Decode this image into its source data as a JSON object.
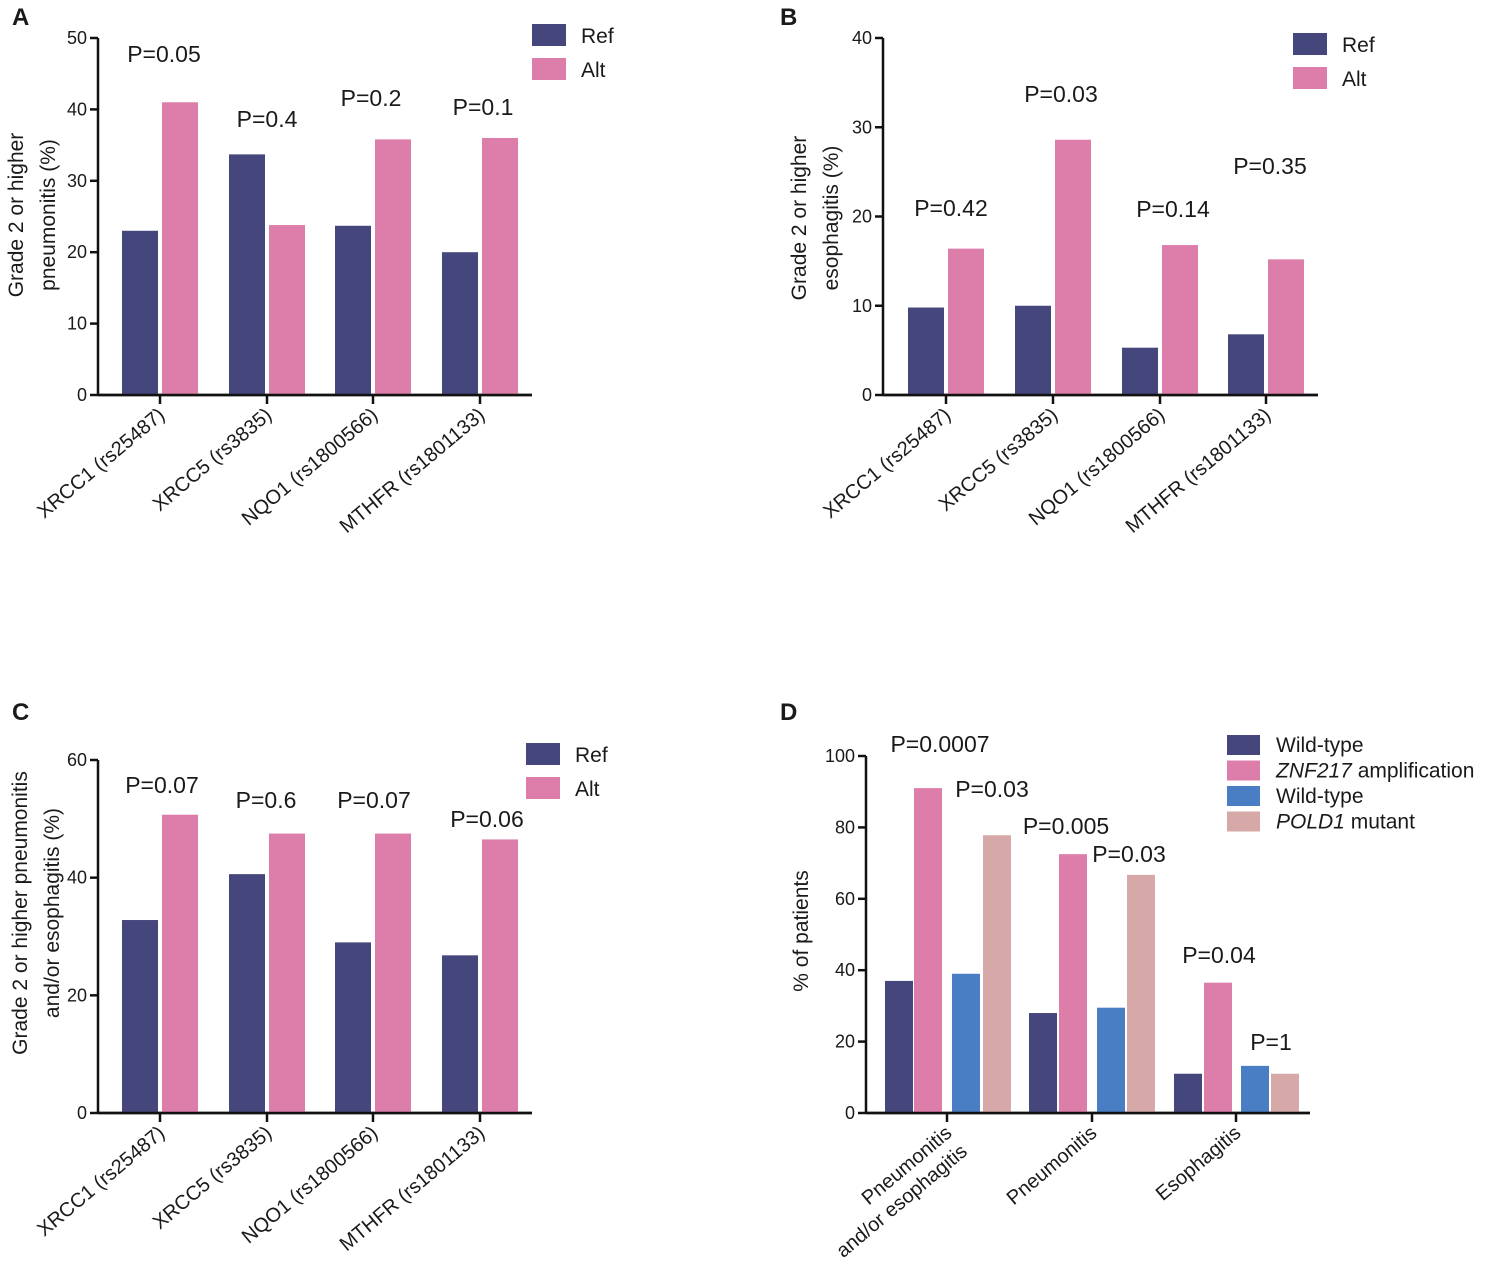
{
  "colors": {
    "ref": "#45467b",
    "alt": "#dc7daa",
    "wild_type_2": "#4a7ec4",
    "pold1_mutant": "#d6a8a8",
    "axis": "#111111"
  },
  "chart_data": [
    {
      "panel": "A",
      "type": "bar",
      "ylabel": [
        "Grade 2 or higher",
        "pneumonitis (%)"
      ],
      "ylim": [
        0,
        50
      ],
      "yticks": [
        0,
        10,
        20,
        30,
        40,
        50
      ],
      "categories": [
        "XRCC1 (rs25487)",
        "XRCC5 (rs3835)",
        "NQO1 (rs1800566)",
        "MTHFR (rs1801133)"
      ],
      "series": [
        {
          "name": "Ref",
          "color_key": "ref",
          "values": [
            23,
            33.7,
            23.7,
            20
          ]
        },
        {
          "name": "Alt",
          "color_key": "alt",
          "values": [
            41,
            23.8,
            35.8,
            36
          ]
        }
      ],
      "pvalues": [
        "P=0.05",
        "P=0.4",
        "P=0.2",
        "P=0.1"
      ],
      "legend": [
        {
          "label": "Ref",
          "color_key": "ref"
        },
        {
          "label": "Alt",
          "color_key": "alt"
        }
      ]
    },
    {
      "panel": "B",
      "type": "bar",
      "ylabel": [
        "Grade 2 or higher",
        "esophagitis (%)"
      ],
      "ylim": [
        0,
        40
      ],
      "yticks": [
        0,
        10,
        20,
        30,
        40
      ],
      "categories": [
        "XRCC1 (rs25487)",
        "XRCC5 (rs3835)",
        "NQO1 (rs1800566)",
        "MTHFR (rs1801133)"
      ],
      "series": [
        {
          "name": "Ref",
          "color_key": "ref",
          "values": [
            9.8,
            10,
            5.3,
            6.8
          ]
        },
        {
          "name": "Alt",
          "color_key": "alt",
          "values": [
            16.4,
            28.6,
            16.8,
            15.2
          ]
        }
      ],
      "pvalues": [
        "P=0.42",
        "P=0.03",
        "P=0.14",
        "P=0.35"
      ],
      "legend": [
        {
          "label": "Ref",
          "color_key": "ref"
        },
        {
          "label": "Alt",
          "color_key": "alt"
        }
      ]
    },
    {
      "panel": "C",
      "type": "bar",
      "ylabel": [
        "Grade 2 or higher pneumonitis",
        "and/or esophagitis (%)"
      ],
      "ylim": [
        0,
        60
      ],
      "yticks": [
        0,
        20,
        40,
        60
      ],
      "categories": [
        "XRCC1 (rs25487)",
        "XRCC5 (rs3835)",
        "NQO1 (rs1800566)",
        "MTHFR (rs1801133)"
      ],
      "series": [
        {
          "name": "Ref",
          "color_key": "ref",
          "values": [
            32.8,
            40.6,
            29,
            26.8
          ]
        },
        {
          "name": "Alt",
          "color_key": "alt",
          "values": [
            50.7,
            47.5,
            47.5,
            46.5
          ]
        }
      ],
      "pvalues": [
        "P=0.07",
        "P=0.6",
        "P=0.07",
        "P=0.06"
      ],
      "legend": [
        {
          "label": "Ref",
          "color_key": "ref"
        },
        {
          "label": "Alt",
          "color_key": "alt"
        }
      ]
    },
    {
      "panel": "D",
      "type": "bar",
      "ylabel": [
        "% of patients"
      ],
      "ylim": [
        0,
        100
      ],
      "yticks": [
        0,
        20,
        40,
        60,
        80,
        100
      ],
      "categories": [
        [
          "Pneumonitis",
          "and/or esophagitis"
        ],
        [
          "Pneumonitis"
        ],
        [
          "Esophagitis"
        ]
      ],
      "series": [
        {
          "name": "Wild-type",
          "color_key": "ref",
          "values": [
            37,
            28,
            11
          ]
        },
        {
          "name": "ZNF217 amplification",
          "color_key": "alt",
          "values": [
            91,
            72.5,
            36.5
          ]
        },
        {
          "name": "Wild-type",
          "color_key": "wild_type_2",
          "values": [
            39,
            29.5,
            13.2
          ]
        },
        {
          "name": "POLD1 mutant",
          "color_key": "pold1_mutant",
          "values": [
            77.8,
            66.7,
            11
          ]
        }
      ],
      "pvalues": [
        [
          "P=0.0007",
          "P=0.03"
        ],
        [
          "P=0.005",
          "P=0.03"
        ],
        [
          "P=0.04",
          "P=1"
        ]
      ],
      "legend": [
        {
          "label": "Wild-type",
          "italic": "",
          "color_key": "ref"
        },
        {
          "italic": "ZNF217",
          "label": " amplification",
          "color_key": "alt"
        },
        {
          "label": "Wild-type",
          "italic": "",
          "color_key": "wild_type_2"
        },
        {
          "italic": "POLD1",
          "label": " mutant",
          "color_key": "pold1_mutant"
        }
      ]
    }
  ]
}
